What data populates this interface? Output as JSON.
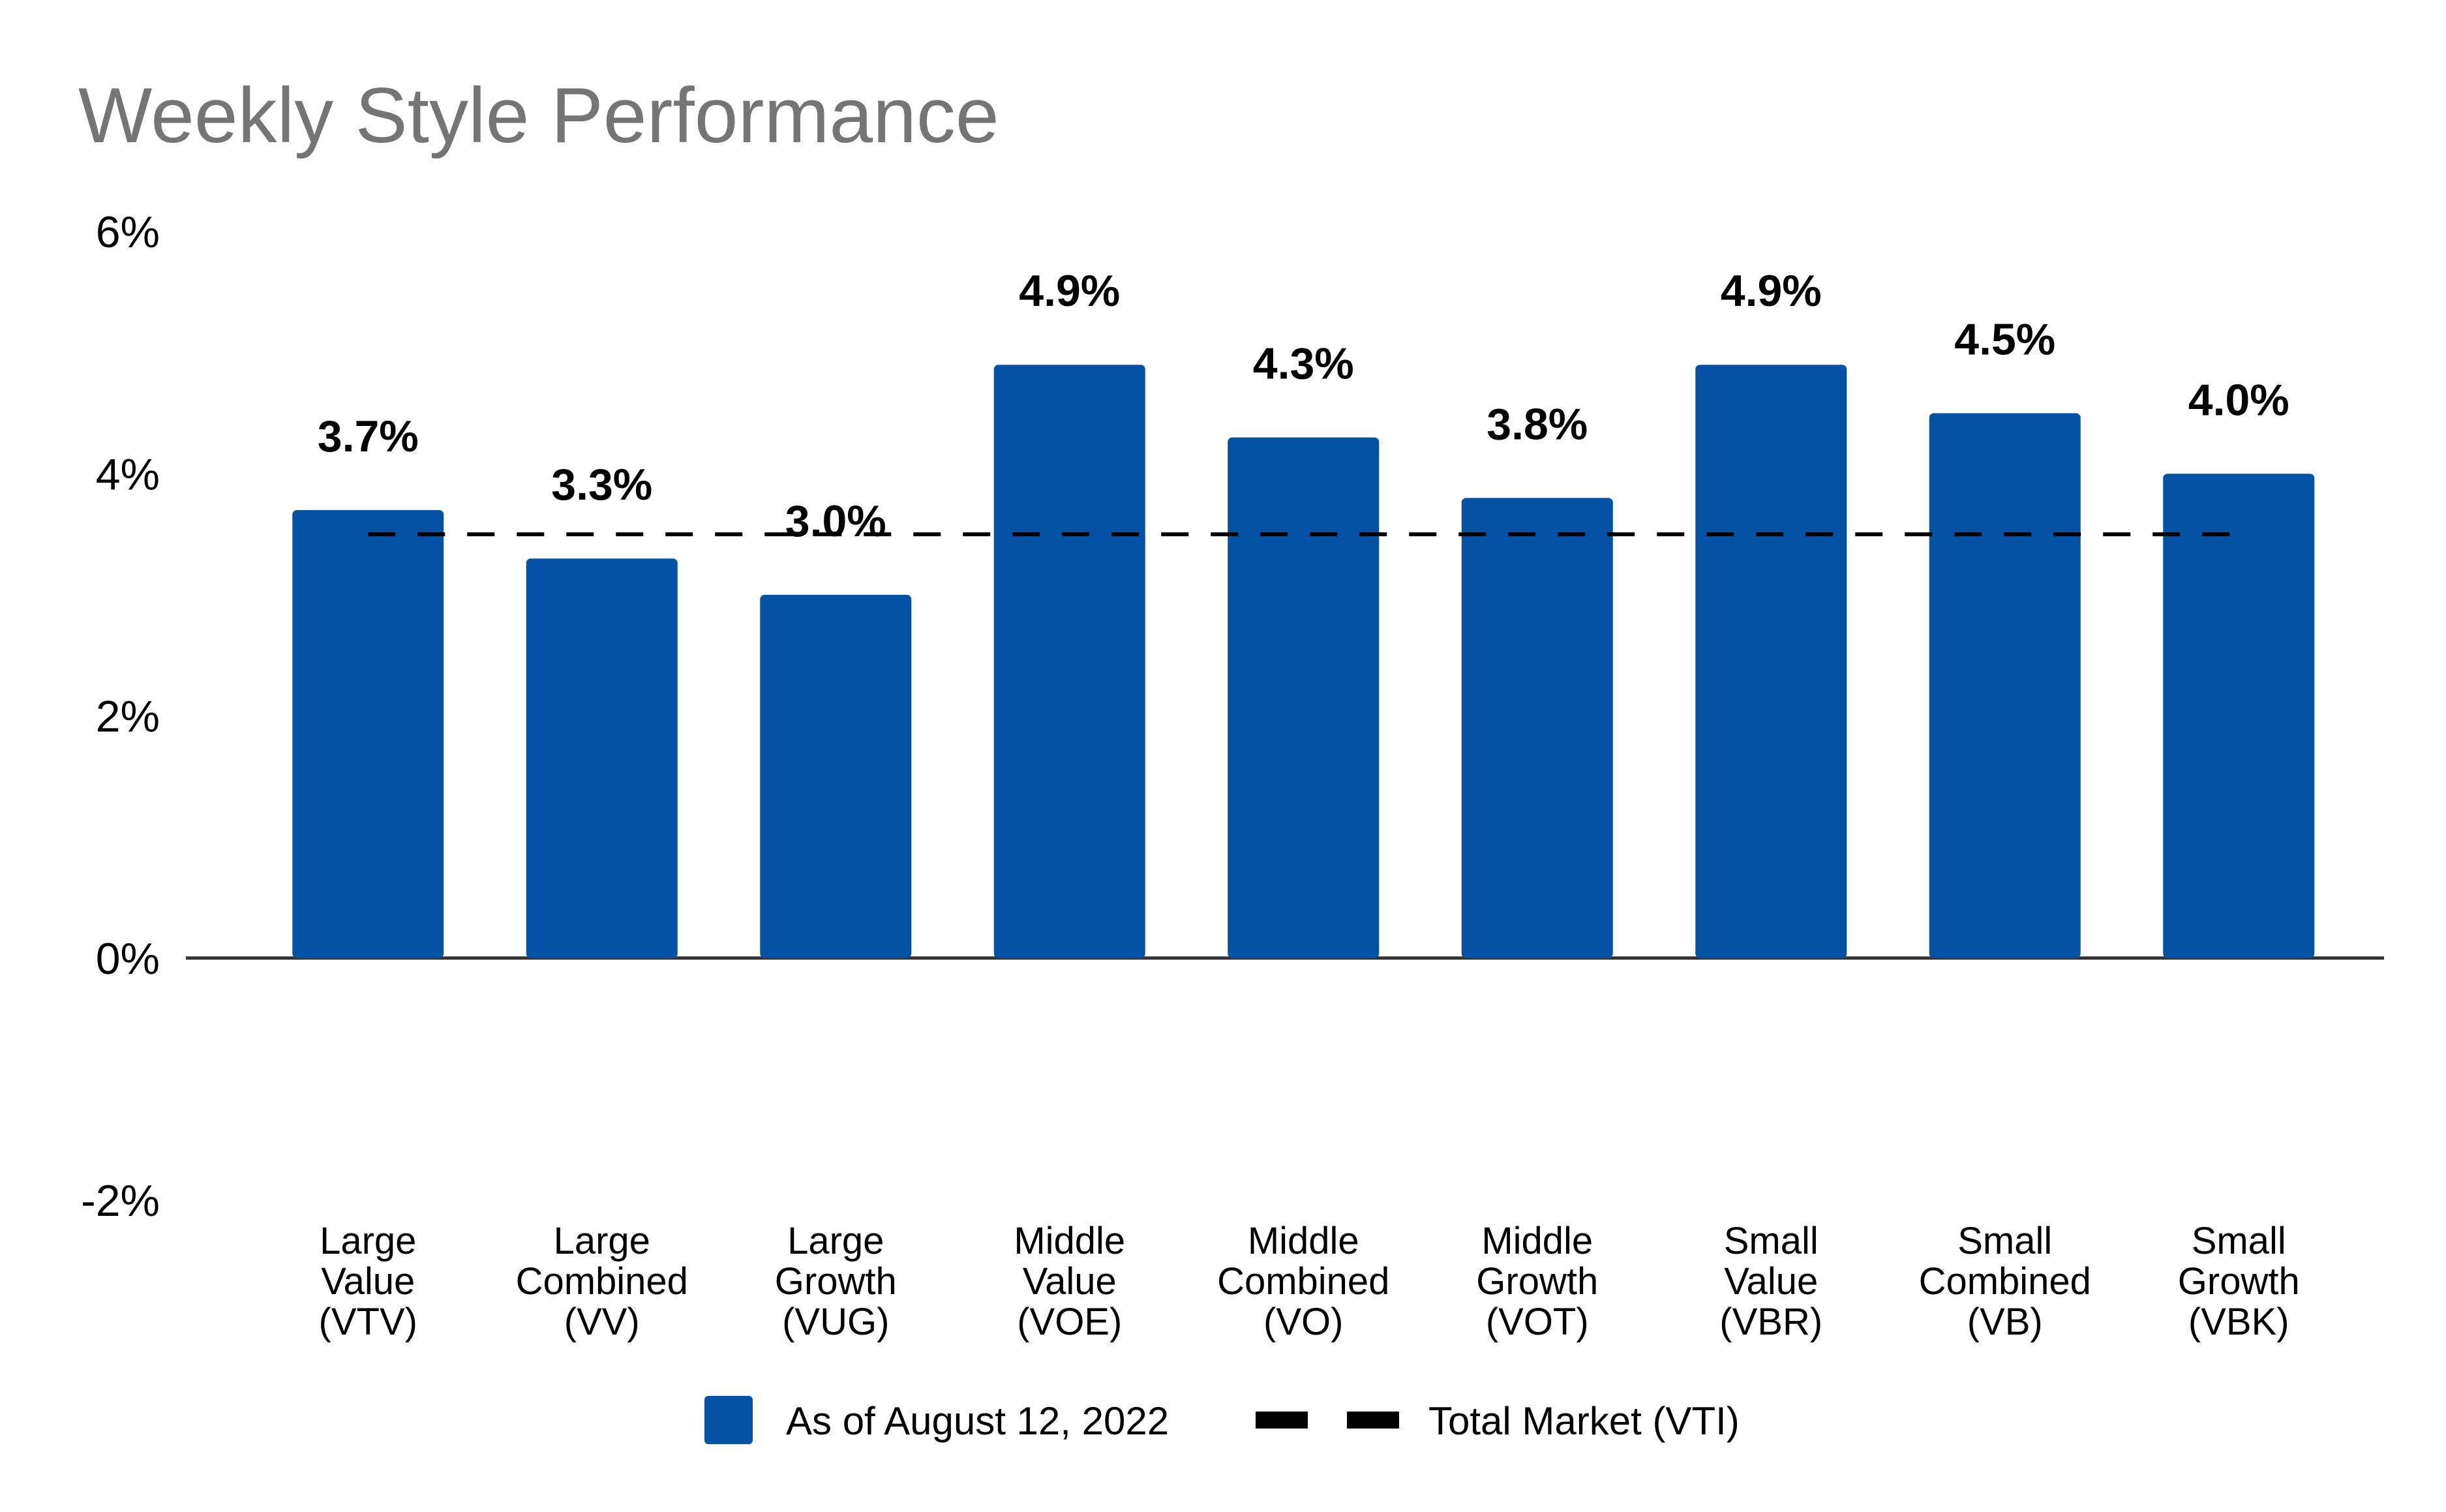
{
  "chart_data": {
    "type": "bar",
    "title": "Weekly Style Performance",
    "categories": [
      [
        "Large",
        "Value",
        "(VTV)"
      ],
      [
        "Large",
        "Combined",
        "(VV)"
      ],
      [
        "Large",
        "Growth",
        "(VUG)"
      ],
      [
        "Middle",
        "Value",
        "(VOE)"
      ],
      [
        "Middle",
        "Combined",
        "(VO)"
      ],
      [
        "Middle",
        "Growth",
        "(VOT)"
      ],
      [
        "Small",
        "Value",
        "(VBR)"
      ],
      [
        "Small",
        "Combined",
        "(VB)"
      ],
      [
        "Small",
        "Growth",
        "(VBK)"
      ]
    ],
    "series": [
      {
        "name": "As of August 12, 2022",
        "values": [
          3.7,
          3.3,
          3.0,
          4.9,
          4.3,
          3.8,
          4.9,
          4.5,
          4.0
        ],
        "labels": [
          "3.7%",
          "3.3%",
          "3.0%",
          "4.9%",
          "4.3%",
          "3.8%",
          "4.9%",
          "4.5%",
          "4.0%"
        ],
        "color": "#0352A6"
      }
    ],
    "reference_line": {
      "name": "Total Market (VTI)",
      "value": 3.5,
      "color": "#000000",
      "style": "dashed"
    },
    "ylim": [
      -2,
      6
    ],
    "yticks": [
      -2,
      0,
      2,
      4,
      6
    ],
    "ytick_labels": [
      "-2%",
      "0%",
      "2%",
      "4%",
      "6%"
    ],
    "xlabel": "",
    "ylabel": "",
    "grid": false,
    "legend_position": "bottom-center"
  }
}
